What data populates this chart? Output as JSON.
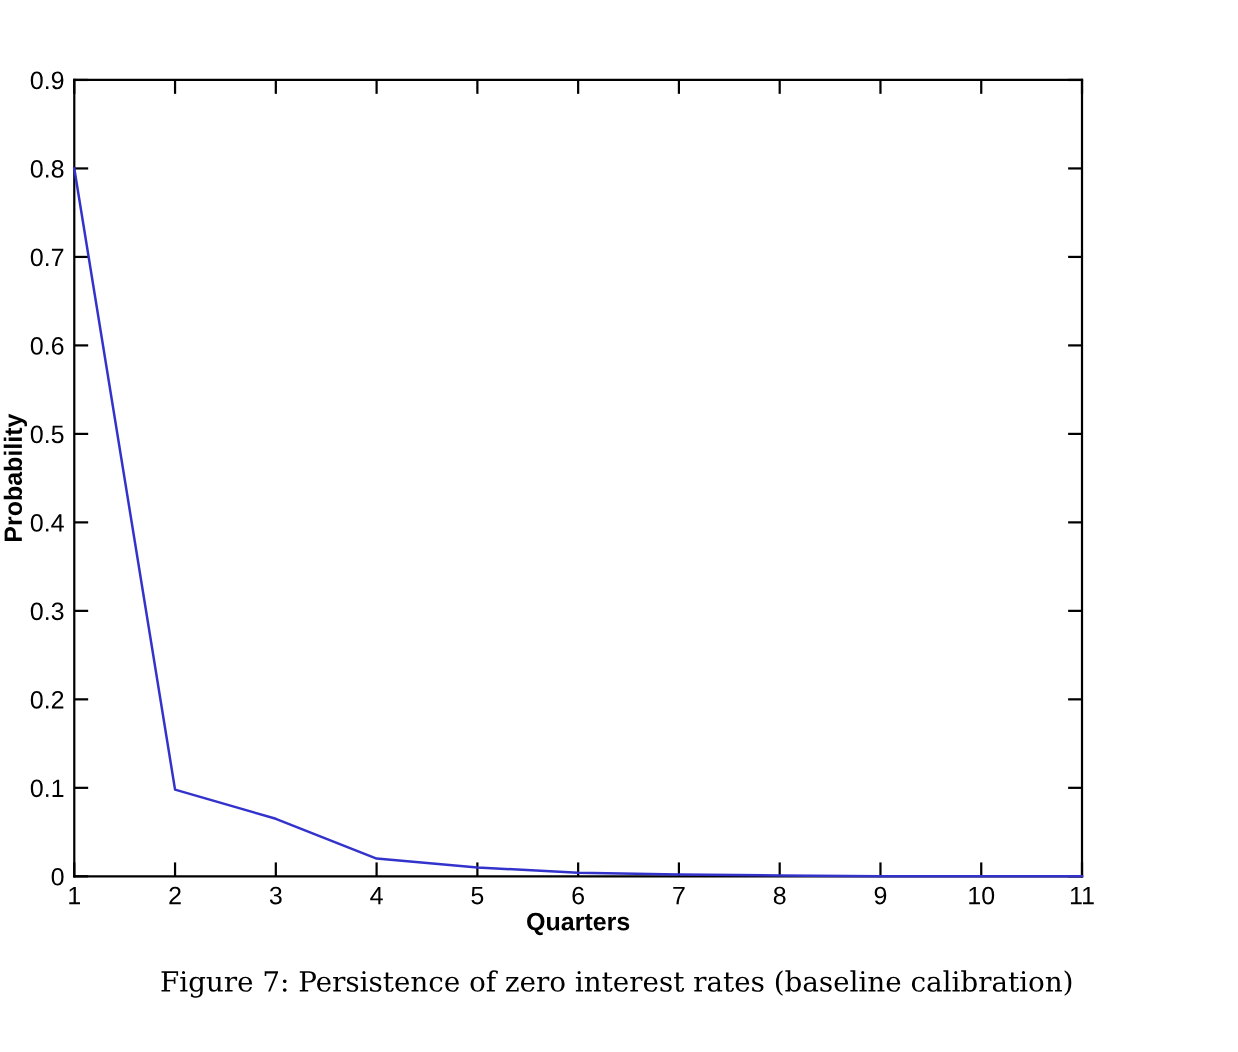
{
  "chart_data": {
    "type": "line",
    "xlabel": "Quarters",
    "ylabel": "Probability",
    "annotations": [
      "Figure 7: Persistence of zero interest rates (baseline calibration)"
    ],
    "x": [
      1,
      2,
      3,
      4,
      5,
      6,
      7,
      8,
      9,
      10,
      11
    ],
    "series": [
      {
        "color": "#3333cc",
        "values": [
          0.8,
          0.098,
          0.065,
          0.02,
          0.01,
          0.004,
          0.002,
          0.001,
          0.0,
          0.0,
          0.0
        ]
      }
    ],
    "xlim": [
      1,
      11
    ],
    "xticks": [
      1,
      2,
      3,
      4,
      5,
      6,
      7,
      8,
      9,
      10,
      11
    ],
    "ylim": [
      0,
      0.9
    ],
    "yticks": [
      0,
      0.1,
      0.2,
      0.3,
      0.4,
      0.5,
      0.6,
      0.7,
      0.8,
      0.9
    ],
    "grid": false,
    "legend": false
  }
}
